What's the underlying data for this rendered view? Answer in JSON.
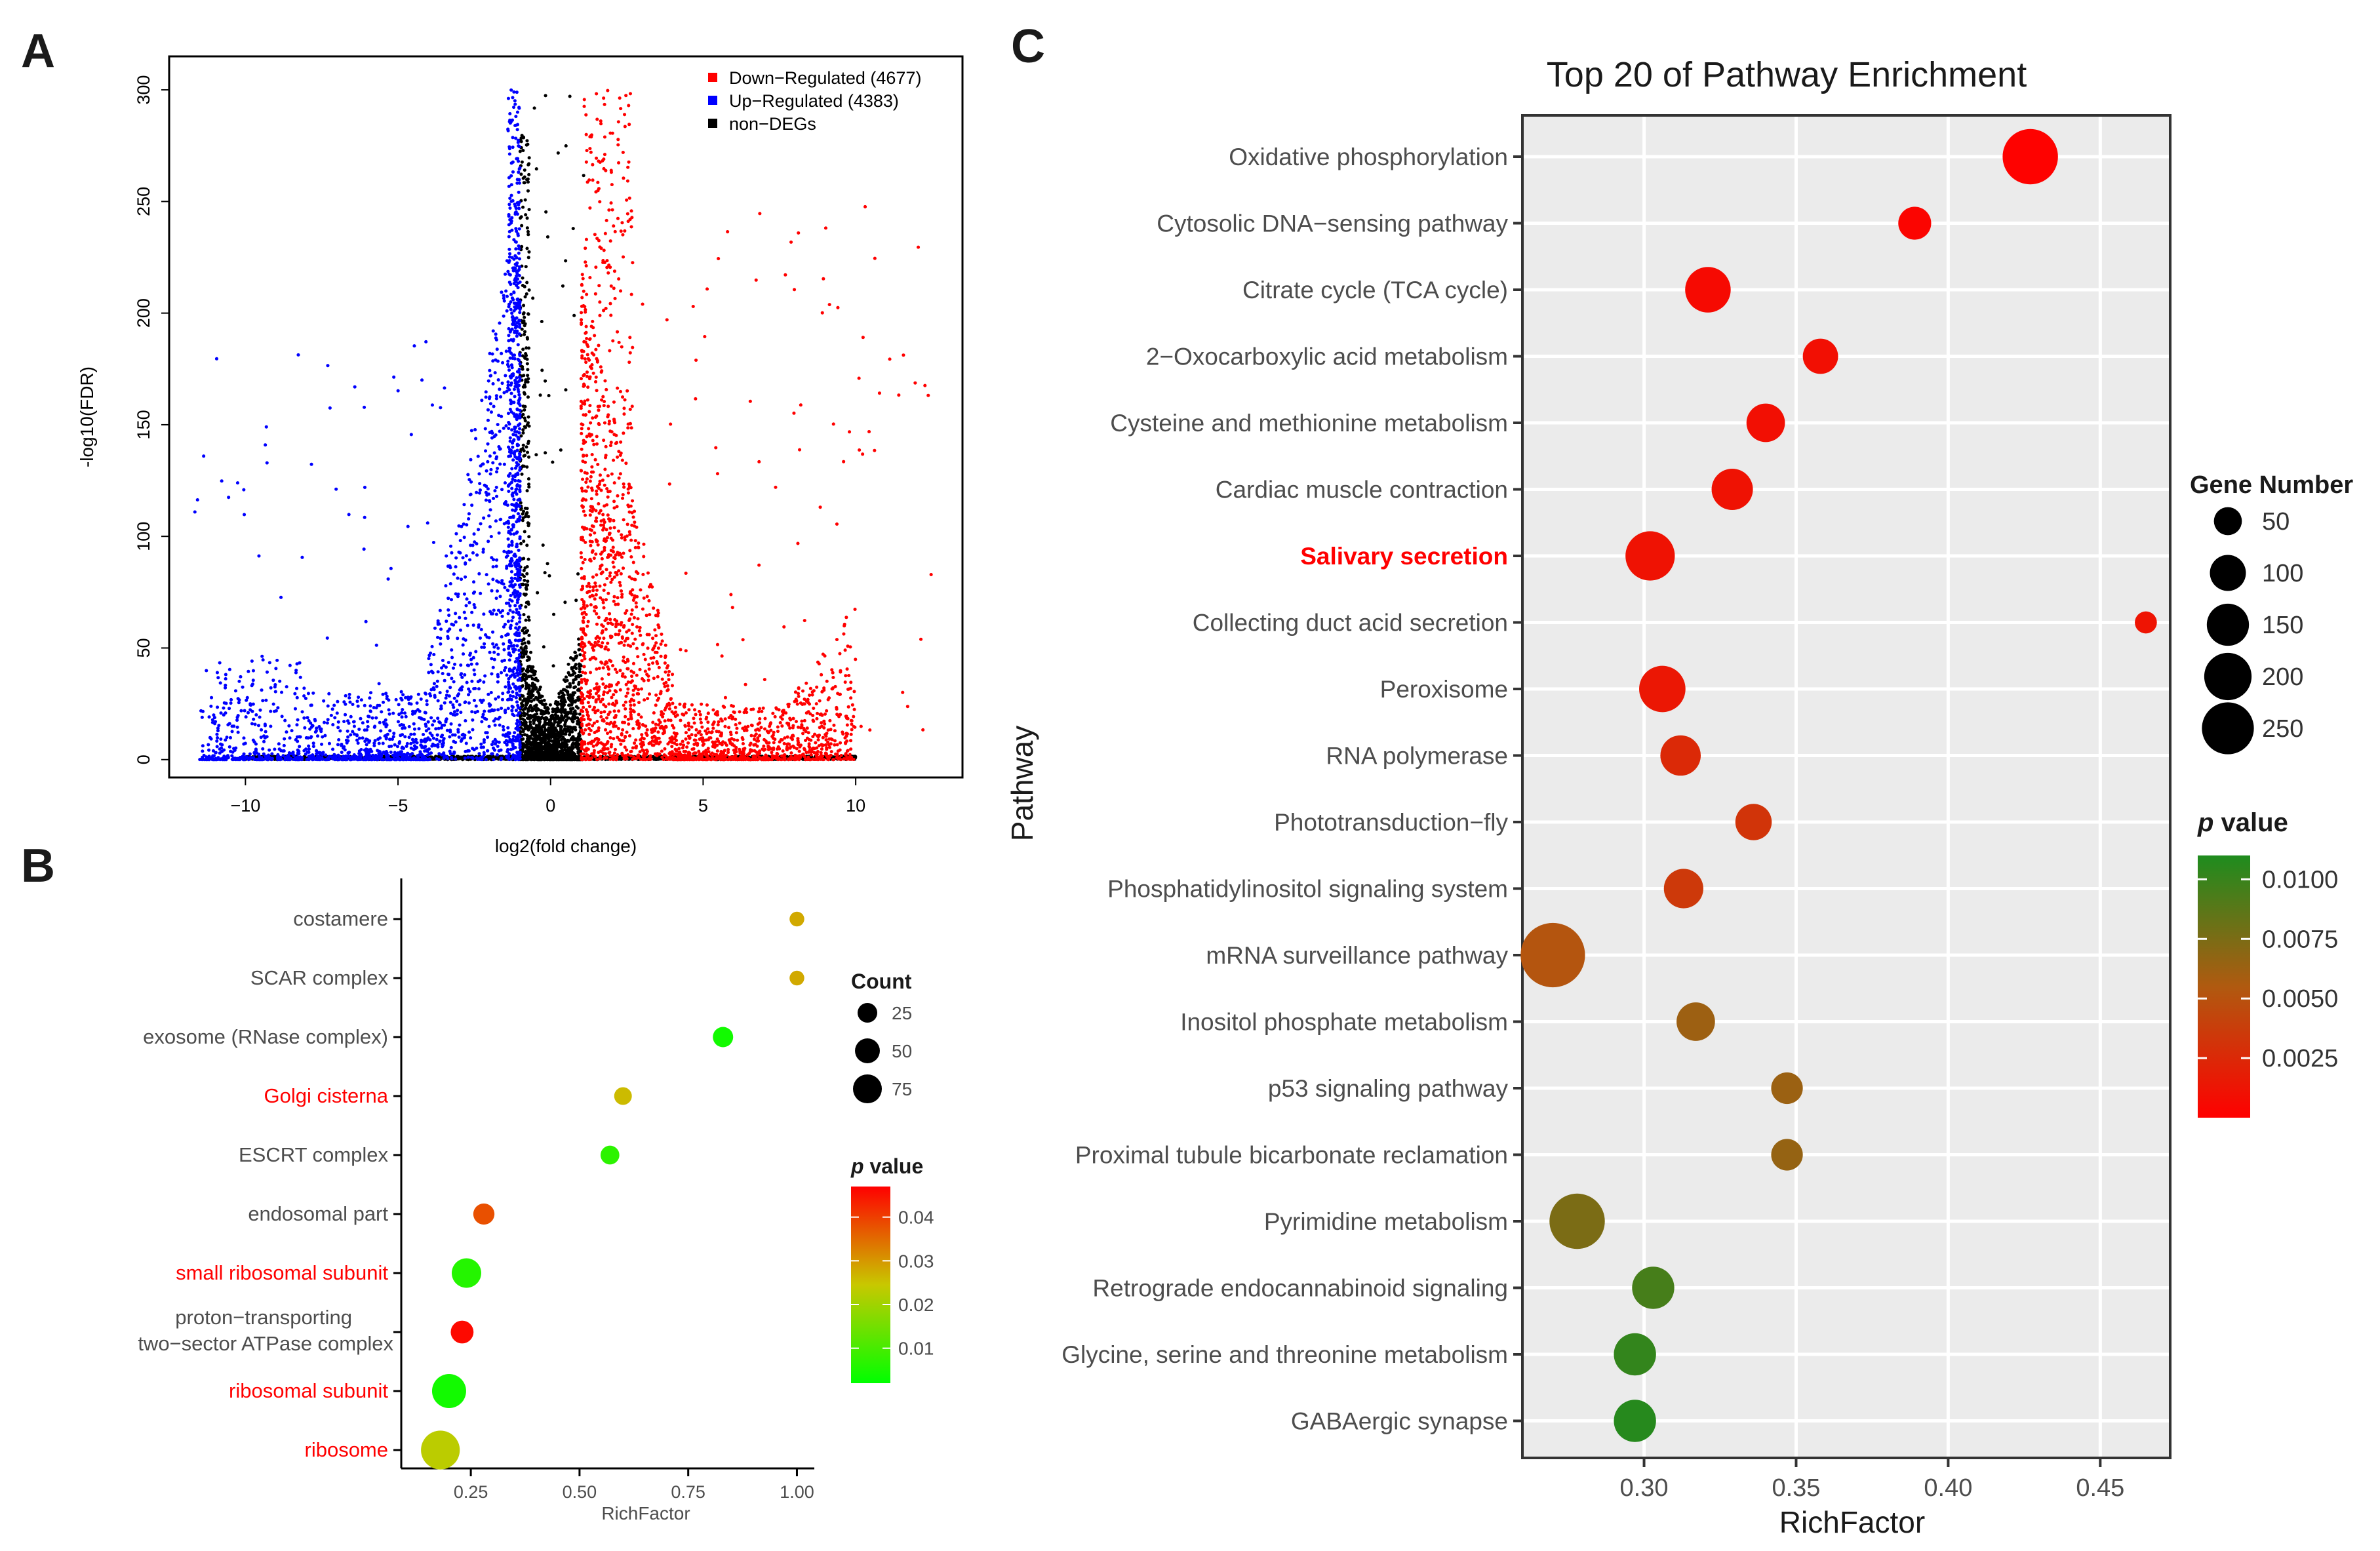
{
  "colors": {
    "down": "#ff0000",
    "up": "#0000ff",
    "nondeg": "#000000",
    "panel_bg": "#ebebeb",
    "grid": "#ffffff",
    "highlight_label": "#ff0000",
    "normal_label": "#4d4d4d",
    "gradient_b": [
      "#00ff00",
      "#c8c800",
      "#ff0000"
    ],
    "gradient_c": [
      "#ff0000",
      "#b05a10",
      "#1e8c1e"
    ]
  },
  "chart_data": [
    {
      "panel_label": "A",
      "type": "scatter",
      "title": "",
      "xlabel": "log2(fold change)",
      "ylabel": "-log10(FDR)",
      "xlim": [
        -12.5,
        13.5
      ],
      "ylim": [
        -8,
        315
      ],
      "xticks": [
        -10,
        -5,
        0,
        5,
        10
      ],
      "yticks": [
        0,
        50,
        100,
        150,
        200,
        250,
        300
      ],
      "legend_position": "top-right",
      "legend": [
        {
          "name": "Down−Regulated (4677)",
          "color_key": "down"
        },
        {
          "name": "Up−Regulated (4383)",
          "color_key": "up"
        },
        {
          "name": "non−DEGs",
          "color_key": "nondeg"
        }
      ],
      "series": [
        {
          "name": "Down−Regulated",
          "count": 4677,
          "x_range": [
            1,
            12.5
          ]
        },
        {
          "name": "Up−Regulated",
          "count": 4383,
          "x_range": [
            -12,
            -1
          ]
        },
        {
          "name": "non−DEGs",
          "x_range": [
            -1,
            1
          ]
        }
      ]
    },
    {
      "panel_label": "B",
      "type": "scatter",
      "title": "",
      "xlabel": "RichFactor",
      "ylabel": "",
      "xlim": [
        0.09,
        1.04
      ],
      "xticks": [
        0.25,
        0.5,
        0.75,
        1.0
      ],
      "xtick_labels": [
        "0.25",
        "0.50",
        "0.75",
        "1.00"
      ],
      "categories": [
        {
          "label": [
            "costamere"
          ],
          "rich": 1.0,
          "count": 3,
          "p": 0.028,
          "highlight": false
        },
        {
          "label": [
            "SCAR complex"
          ],
          "rich": 1.0,
          "count": 3,
          "p": 0.028,
          "highlight": false
        },
        {
          "label": [
            "exosome (RNase complex)"
          ],
          "rich": 0.83,
          "count": 12,
          "p": 0.004,
          "highlight": false
        },
        {
          "label": [
            "Golgi cisterna"
          ],
          "rich": 0.6,
          "count": 7,
          "p": 0.026,
          "highlight": true
        },
        {
          "label": [
            "ESCRT complex"
          ],
          "rich": 0.57,
          "count": 9,
          "p": 0.007,
          "highlight": false
        },
        {
          "label": [
            "endosomal part"
          ],
          "rich": 0.28,
          "count": 14,
          "p": 0.038,
          "highlight": false
        },
        {
          "label": [
            "small ribosomal subunit"
          ],
          "rich": 0.24,
          "count": 40,
          "p": 0.006,
          "highlight": true
        },
        {
          "label": [
            "proton−transporting",
            "two−sector ATPase complex"
          ],
          "rich": 0.23,
          "count": 18,
          "p": 0.046,
          "highlight": false
        },
        {
          "label": [
            "ribosomal subunit"
          ],
          "rich": 0.2,
          "count": 60,
          "p": 0.004,
          "highlight": true
        },
        {
          "label": [
            "ribosome"
          ],
          "rich": 0.18,
          "count": 85,
          "p": 0.023,
          "highlight": true
        }
      ],
      "size_legend": {
        "title": "Count",
        "values": [
          25,
          50,
          75
        ]
      },
      "color_legend": {
        "title_italic": "p",
        "title_rest": " value",
        "ticks": [
          0.04,
          0.03,
          0.02,
          0.01
        ],
        "tick_labels": [
          "0.04",
          "0.03",
          "0.02",
          "0.01"
        ],
        "range": [
          0.002,
          0.047
        ]
      }
    },
    {
      "panel_label": "C",
      "type": "scatter",
      "title": "Top 20 of Pathway Enrichment",
      "xlabel": "RichFactor",
      "ylabel": "Pathway",
      "xlim": [
        0.26,
        0.473
      ],
      "xticks": [
        0.3,
        0.35,
        0.4,
        0.45
      ],
      "xtick_labels": [
        "0.30",
        "0.35",
        "0.40",
        "0.45"
      ],
      "categories": [
        {
          "label": "Oxidative phosphorylation",
          "rich": 0.427,
          "genes": 180,
          "p": 0.0001,
          "highlight": false
        },
        {
          "label": "Cytosolic DNA−sensing pathway",
          "rich": 0.389,
          "genes": 45,
          "p": 0.0003,
          "highlight": false
        },
        {
          "label": "Citrate cycle (TCA cycle)",
          "rich": 0.321,
          "genes": 110,
          "p": 0.0006,
          "highlight": false
        },
        {
          "label": "2−Oxocarboxylic acid metabolism",
          "rich": 0.358,
          "genes": 55,
          "p": 0.0009,
          "highlight": false
        },
        {
          "label": "Cysteine and methionine metabolism",
          "rich": 0.34,
          "genes": 70,
          "p": 0.0009,
          "highlight": false
        },
        {
          "label": "Cardiac muscle contraction",
          "rich": 0.329,
          "genes": 85,
          "p": 0.0011,
          "highlight": false
        },
        {
          "label": "Salivary secretion",
          "rich": 0.302,
          "genes": 135,
          "p": 0.0011,
          "highlight": true
        },
        {
          "label": "Collecting duct acid secretion",
          "rich": 0.465,
          "genes": 12,
          "p": 0.0012,
          "highlight": false
        },
        {
          "label": "Peroxisome",
          "rich": 0.306,
          "genes": 115,
          "p": 0.0014,
          "highlight": false
        },
        {
          "label": "RNA polymerase",
          "rich": 0.312,
          "genes": 80,
          "p": 0.0025,
          "highlight": false
        },
        {
          "label": "Phototransduction−fly",
          "rich": 0.336,
          "genes": 60,
          "p": 0.0032,
          "highlight": false
        },
        {
          "label": "Phosphatidylinositol signaling system",
          "rich": 0.313,
          "genes": 75,
          "p": 0.0035,
          "highlight": false
        },
        {
          "label": "mRNA surveillance pathway",
          "rich": 0.27,
          "genes": 260,
          "p": 0.0052,
          "highlight": false
        },
        {
          "label": "Inositol phosphate metabolism",
          "rich": 0.317,
          "genes": 70,
          "p": 0.0062,
          "highlight": false
        },
        {
          "label": "p53 signaling pathway",
          "rich": 0.347,
          "genes": 40,
          "p": 0.0063,
          "highlight": false
        },
        {
          "label": "Proximal tubule bicarbonate reclamation",
          "rich": 0.347,
          "genes": 40,
          "p": 0.0065,
          "highlight": false
        },
        {
          "label": "Pyrimidine metabolism",
          "rich": 0.278,
          "genes": 180,
          "p": 0.0075,
          "highlight": false
        },
        {
          "label": "Retrograde endocannabinoid signaling",
          "rich": 0.303,
          "genes": 90,
          "p": 0.0095,
          "highlight": false
        },
        {
          "label": "Glycine, serine and threonine metabolism",
          "rich": 0.297,
          "genes": 90,
          "p": 0.0102,
          "highlight": false
        },
        {
          "label": "GABAergic synapse",
          "rich": 0.297,
          "genes": 90,
          "p": 0.0107,
          "highlight": false
        }
      ],
      "size_legend": {
        "title": "Gene Number",
        "values": [
          50,
          100,
          150,
          200,
          250
        ]
      },
      "color_legend": {
        "title_italic": "p",
        "title_rest": " value",
        "ticks": [
          0.01,
          0.0075,
          0.005,
          0.0025
        ],
        "tick_labels": [
          "0.0100",
          "0.0075",
          "0.0050",
          "0.0025"
        ],
        "range": [
          0,
          0.011
        ]
      }
    }
  ]
}
